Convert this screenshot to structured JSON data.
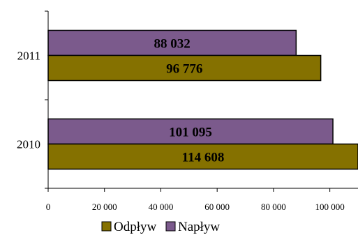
{
  "chart_data": {
    "type": "bar",
    "orientation": "horizontal",
    "categories": [
      "2011",
      "2010"
    ],
    "series": [
      {
        "name": "Napływ",
        "values": [
          88032,
          101095
        ],
        "labels": [
          "88 032",
          "101 095"
        ],
        "color": "#7b5a8c"
      },
      {
        "name": "Odpływ",
        "values": [
          96776,
          114608
        ],
        "labels": [
          "96 776",
          "114 608"
        ],
        "color": "#857100"
      }
    ],
    "xlim": [
      0,
      110000
    ],
    "x_ticks": [
      0,
      20000,
      40000,
      60000,
      80000,
      100000
    ],
    "x_tick_labels": [
      "0",
      "20 000",
      "40 000",
      "60 000",
      "80 000",
      "100 000"
    ],
    "grid": false,
    "legend_position": "bottom",
    "legend_order": [
      "Odpływ",
      "Napływ"
    ]
  }
}
